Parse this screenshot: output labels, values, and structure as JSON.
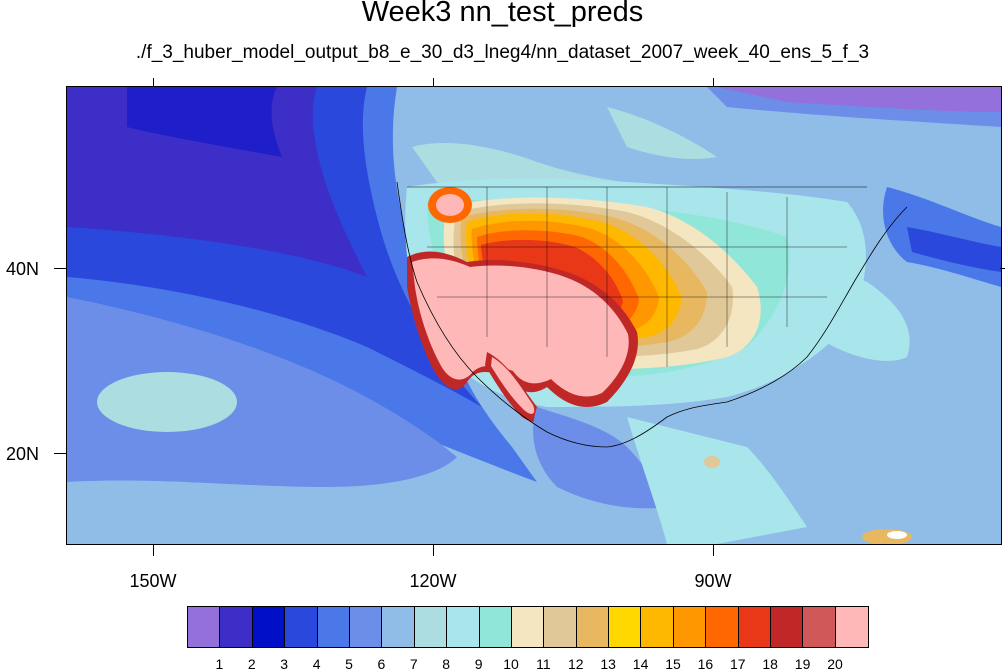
{
  "title": "Week3 nn_test_preds",
  "subtitle": "./f_3_huber_model_output_b8_e_30_d3_lneg4/nn_dataset_2007_week_40_ens_5_f_3",
  "lat_labels": [
    "40N",
    "20N"
  ],
  "lon_labels": [
    "150W",
    "120W",
    "90W"
  ],
  "colorbar": {
    "colors": [
      "#9370db",
      "#3d2ec8",
      "#0010c8",
      "#2a48dc",
      "#4a78e8",
      "#6c8ee8",
      "#90bde8",
      "#acdde0",
      "#a8e6ec",
      "#90e6d8",
      "#f3e6c0",
      "#e0c898",
      "#e8b860",
      "#ffd800",
      "#ffb800",
      "#ff9800",
      "#ff6800",
      "#e83818",
      "#c02828",
      "#d05858",
      "#ffb8b8"
    ],
    "labels": [
      "1",
      "2",
      "3",
      "4",
      "5",
      "6",
      "7",
      "8",
      "9",
      "10",
      "11",
      "12",
      "13",
      "14",
      "15",
      "16",
      "17",
      "18",
      "19",
      "20"
    ]
  }
}
